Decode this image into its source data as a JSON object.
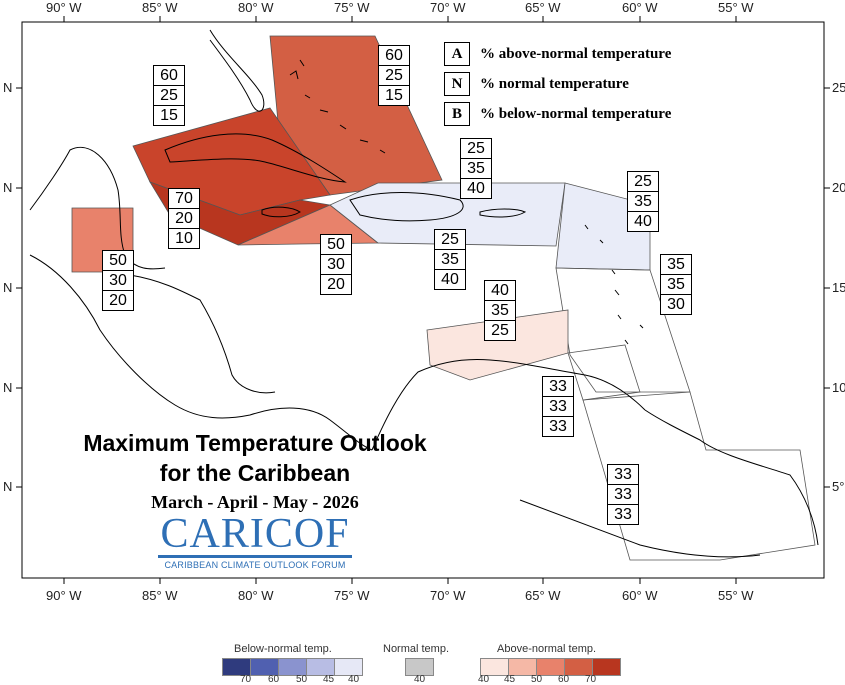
{
  "title": {
    "line1": "Maximum Temperature Outlook",
    "line2": "for the Caribbean",
    "line3": "March - April - May - 2026"
  },
  "logo": {
    "name": "CARICOF",
    "subtitle": "CARIBBEAN CLIMATE OUTLOOK FORUM"
  },
  "legend": {
    "items": [
      {
        "key": "A",
        "label": "% above-normal temperature"
      },
      {
        "key": "N",
        "label": "% normal temperature"
      },
      {
        "key": "B",
        "label": "% below-normal temperature"
      }
    ]
  },
  "axes": {
    "top_lon_labels": [
      "90° W",
      "85° W",
      "80° W",
      "75° W",
      "70° W",
      "65° W",
      "60° W",
      "55° W"
    ],
    "bottom_lon_labels": [
      "90° W",
      "85° W",
      "80° W",
      "75° W",
      "70° W",
      "65° W",
      "60° W",
      "55° W"
    ],
    "left_lat_labels": [
      "N",
      "N",
      "N",
      "N",
      "N"
    ],
    "right_lat_labels": [
      "25",
      "20",
      "15",
      "10",
      "5°"
    ]
  },
  "regions": [
    {
      "name": "bahamas-region",
      "color": "#d35f44",
      "probs": [
        "60",
        "25",
        "15"
      ]
    },
    {
      "name": "cuba-region",
      "color": "#c9442b",
      "probs": [
        "60",
        "25",
        "15"
      ]
    },
    {
      "name": "cayman-jamaica-region",
      "color": "#b8361f",
      "probs": [
        "70",
        "20",
        "10"
      ]
    },
    {
      "name": "belize-region",
      "color": "#e8826b",
      "probs": [
        "50",
        "30",
        "20"
      ]
    },
    {
      "name": "jamaica-south-region",
      "color": "#e8826b",
      "probs": [
        "50",
        "30",
        "20"
      ]
    },
    {
      "name": "hispaniola-region",
      "color": "#e9ecf8",
      "probs": [
        "25",
        "35",
        "40"
      ]
    },
    {
      "name": "puerto-rico-label",
      "color": "#e9ecf8",
      "probs": [
        "25",
        "35",
        "40"
      ]
    },
    {
      "name": "leeward-islands-region",
      "color": "#e9ecf8",
      "probs": [
        "25",
        "35",
        "40"
      ]
    },
    {
      "name": "windward-islands-region",
      "color": "#ffffff",
      "probs": [
        "35",
        "35",
        "30"
      ]
    },
    {
      "name": "abc-islands-region",
      "color": "#fbe6df",
      "probs": [
        "40",
        "35",
        "25"
      ]
    },
    {
      "name": "trinidad-region",
      "color": "#ffffff",
      "probs": [
        "33",
        "33",
        "33"
      ]
    },
    {
      "name": "guianas-region",
      "color": "#ffffff",
      "probs": [
        "33",
        "33",
        "33"
      ]
    }
  ],
  "colorbar": {
    "below": {
      "title": "Below-normal temp.",
      "ticks": [
        "70",
        "60",
        "50",
        "45",
        "40"
      ],
      "colors": [
        "#2f3b7e",
        "#5060b0",
        "#8a93cf",
        "#b8bde4",
        "#e6e8f6"
      ]
    },
    "normal": {
      "title": "Normal temp.",
      "ticks": [
        "40"
      ],
      "colors": [
        "#c8c8c8"
      ]
    },
    "above": {
      "title": "Above-normal temp.",
      "ticks": [
        "40",
        "45",
        "50",
        "60",
        "70"
      ],
      "colors": [
        "#fbe6df",
        "#f5b8a6",
        "#e8826b",
        "#d35f44",
        "#b8361f"
      ]
    }
  }
}
